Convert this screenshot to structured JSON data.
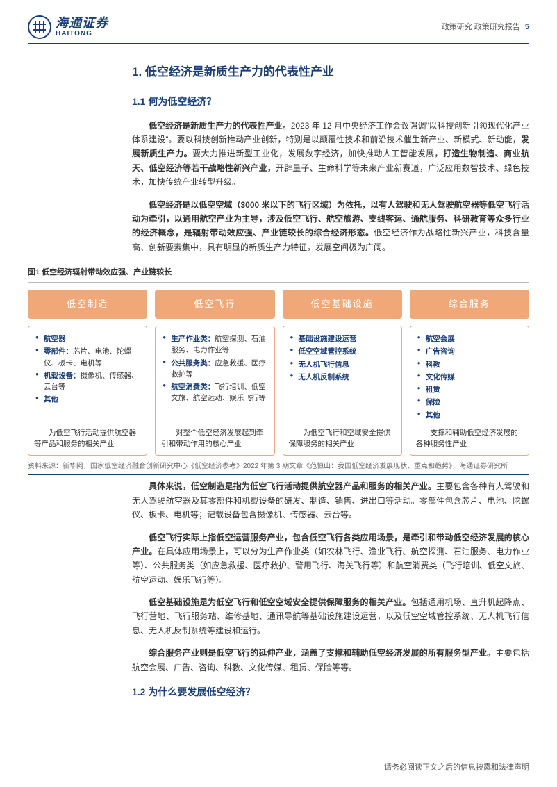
{
  "header": {
    "logo_cn": "海通证券",
    "logo_en": "HAITONG",
    "right_text": "政策研究 政策研究报告",
    "page_num": "5"
  },
  "section1": {
    "title": "1.  低空经济是新质生产力的代表性产业",
    "sub1_title": "1.1 何为低空经济？",
    "p1_bold1": "低空经济是新质生产力的代表性产业。",
    "p1_text1": "2023 年 12 月中央经济工作会议强调“以科技创新引领现代化产业体系建设”。要以科技创新推动产业创新，特别是以颠覆性技术和前沿技术催生新产业、新模式、新动能，",
    "p1_bold2": "发展新质生产力。",
    "p1_text2": "要大力推进新型工业化，发展数字经济，加快推动人工智能发展，",
    "p1_bold3": "打造生物制造、商业航天、低空经济等若干战略性新兴产业，",
    "p1_text3": "开辟量子、生命科学等未来产业新赛道，广泛应用数智技术、绿色技术，加快传统产业转型升级。",
    "p2_bold": "低空经济是以低空空域（3000 米以下的飞行区域）为依托，以有人驾驶和无人驾驶航空器等低空飞行活动为牵引，以通用航空产业为主导，涉及低空飞行、航空旅游、支线客运、通航服务、科研教育等众多行业的经济概念，是辐射带动效应强、产业链较长的综合经济形态。",
    "p2_text": "低空经济作为战略性新兴产业，科技含量高、创新要素集中，具有明显的新质生产力特征，发展空间极为广阔。"
  },
  "figure": {
    "title": "图1   低空经济辐射带动效应强、产业链较长",
    "head_color": "#f0a878",
    "border_color": "#f0a878",
    "text_color": "#1a3e7a",
    "columns": [
      {
        "head": "低空制造",
        "items": [
          {
            "label": "航空器",
            "sub": ""
          },
          {
            "label": "零部件：",
            "sub": "芯片、电池、陀螺仪、板卡、电机等"
          },
          {
            "label": "机载设备：",
            "sub": "摄像机、传感器、云台等"
          },
          {
            "label": "其他",
            "sub": ""
          }
        ],
        "foot": "为低空飞行活动提供航空器等产品和服务的相关产业"
      },
      {
        "head": "低空飞行",
        "items": [
          {
            "label": "生产作业类：",
            "sub": "航空探测、石油服务、电力作业等"
          },
          {
            "label": "公共服务类：",
            "sub": "应急救援、医疗救护等"
          },
          {
            "label": "航空消费类：",
            "sub": "飞行培训、低空文旅、航空运动、娱乐飞行等"
          }
        ],
        "foot": "对整个低空经济发展起到牵引和带动作用的核心产业"
      },
      {
        "head": "低空基础设施",
        "items": [
          {
            "label": "基础设施建设运营",
            "sub": ""
          },
          {
            "label": "低空空域管控系统",
            "sub": ""
          },
          {
            "label": "无人机飞行信息",
            "sub": ""
          },
          {
            "label": "无人机反制系统",
            "sub": ""
          }
        ],
        "foot": "为低空飞行和空域安全提供保障服务的相关产业"
      },
      {
        "head": "综合服务",
        "items": [
          {
            "label": "航空会展",
            "sub": ""
          },
          {
            "label": "广告咨询",
            "sub": ""
          },
          {
            "label": "科教",
            "sub": ""
          },
          {
            "label": "文化传媒",
            "sub": ""
          },
          {
            "label": "租赁",
            "sub": ""
          },
          {
            "label": "保险",
            "sub": ""
          },
          {
            "label": "其他",
            "sub": ""
          }
        ],
        "foot": "支撑和辅助低空经济发展的各种服务性产业"
      }
    ],
    "source": "资料来源：新华网，国家低空经济融合创新研究中心《低空经济参考》2022 年第 3 期文章《范恒山：我国低空经济发展现状、重点和趋势》，海通证券研究所"
  },
  "body": {
    "p3_bold": "具体来说，低空制造是指为低空飞行活动提供航空器产品和服务的相关产业。",
    "p3_text": "主要包含各种有人驾驶和无人驾驶航空器及其零部件和机载设备的研发、制造、销售、进出口等活动。零部件包含芯片、电池、陀螺仪、板卡、电机等；记载设备包含摄像机、传感器、云台等。",
    "p4_bold": "低空飞行实际上指低空运营服务产业，包含低空飞行各类应用场景，是牵引和带动低空经济发展的核心产业。",
    "p4_text": "在具体应用场景上，可以分为生产作业类（如农林飞行、渔业飞行、航空探测、石油服务、电力作业等）、公共服务类（如应急救援、医疗救护、警用飞行、海关飞行等）和航空消费类（飞行培训、低空文旅、航空运动、娱乐飞行等）。",
    "p5_bold": "低空基础设施是为低空飞行和低空空域安全提供保障服务的相关产业。",
    "p5_text": "包括通用机场、直升机起降点、飞行营地、飞行服务站、维修基地、通讯导航等基础设施建设运营，以及低空空域管控系统、无人机飞行信息、无人机反制系统等建设和运行。",
    "p6_bold": "综合服务产业则是低空飞行的延伸产业，涵盖了支撑和辅助低空经济发展的所有服务型产业。",
    "p6_text": "主要包括航空会展、广告、咨询、科教、文化传媒、租赁、保险等等。",
    "sub2_title": "1.2 为什么要发展低空经济？"
  },
  "footer": "请务必阅读正文之后的信息披露和法律声明",
  "colors": {
    "brand": "#1a3e7a",
    "accent": "#f0a878",
    "text": "#333333",
    "muted": "#666666",
    "bg": "#ffffff"
  }
}
